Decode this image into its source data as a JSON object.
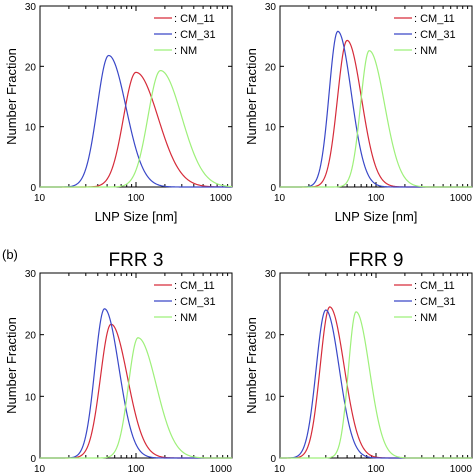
{
  "figure": {
    "section_label": "(b)"
  },
  "chart_data": [
    {
      "type": "line",
      "title": "",
      "xlabel": "LNP Size [nm]",
      "ylabel": "Number Fraction",
      "xscale": "log",
      "xlim": [
        10,
        1000
      ],
      "ylim": [
        0,
        30
      ],
      "xticks": [
        "10",
        "100",
        "1000"
      ],
      "yticks": [
        "0",
        "10",
        "20",
        "30"
      ],
      "grid": false,
      "legend_position": "top-right",
      "colors": {
        "CM_11": "#d62c3a",
        "CM_31": "#3a48c8",
        "NM": "#9ef07a"
      },
      "series": [
        {
          "name": ": CM_11",
          "peak_x": 100,
          "peak_y": 19.0,
          "sigma_left": 0.13,
          "sigma_right": 0.23
        },
        {
          "name": ": CM_31",
          "peak_x": 52,
          "peak_y": 21.8,
          "sigma_left": 0.12,
          "sigma_right": 0.18
        },
        {
          "name": ": NM",
          "peak_x": 180,
          "peak_y": 19.3,
          "sigma_left": 0.13,
          "sigma_right": 0.22
        }
      ]
    },
    {
      "type": "line",
      "title": "",
      "xlabel": "LNP Size [nm]",
      "ylabel": "Number Fraction",
      "xscale": "log",
      "xlim": [
        10,
        1000
      ],
      "ylim": [
        0,
        30
      ],
      "xticks": [
        "10",
        "100",
        "1000"
      ],
      "yticks": [
        "0",
        "10",
        "20",
        "30"
      ],
      "grid": false,
      "legend_position": "top-right",
      "colors": {
        "CM_11": "#d62c3a",
        "CM_31": "#3a48c8",
        "NM": "#9ef07a"
      },
      "series": [
        {
          "name": ": CM_11",
          "peak_x": 50,
          "peak_y": 24.3,
          "sigma_left": 0.1,
          "sigma_right": 0.15
        },
        {
          "name": ": CM_31",
          "peak_x": 40,
          "peak_y": 25.8,
          "sigma_left": 0.09,
          "sigma_right": 0.14
        },
        {
          "name": ": NM",
          "peak_x": 85,
          "peak_y": 22.6,
          "sigma_left": 0.09,
          "sigma_right": 0.16
        }
      ]
    },
    {
      "type": "line",
      "title": "FRR 3",
      "xlabel": "",
      "ylabel": "Number Fraction",
      "xscale": "log",
      "xlim": [
        10,
        1000
      ],
      "ylim": [
        0,
        30
      ],
      "xticks": [
        "10",
        "100",
        "1000"
      ],
      "yticks": [
        "0",
        "10",
        "20",
        "30"
      ],
      "grid": false,
      "legend_position": "top-right",
      "colors": {
        "CM_11": "#d62c3a",
        "CM_31": "#3a48c8",
        "NM": "#9ef07a"
      },
      "series": [
        {
          "name": ": CM_11",
          "peak_x": 55,
          "peak_y": 21.7,
          "sigma_left": 0.11,
          "sigma_right": 0.17
        },
        {
          "name": ": CM_31",
          "peak_x": 47,
          "peak_y": 24.2,
          "sigma_left": 0.1,
          "sigma_right": 0.15
        },
        {
          "name": ": NM",
          "peak_x": 105,
          "peak_y": 19.5,
          "sigma_left": 0.1,
          "sigma_right": 0.19
        }
      ]
    },
    {
      "type": "line",
      "title": "FRR 9",
      "xlabel": "",
      "ylabel": "Number Fraction",
      "xscale": "log",
      "xlim": [
        10,
        1000
      ],
      "ylim": [
        0,
        30
      ],
      "xticks": [
        "10",
        "100",
        "1000"
      ],
      "yticks": [
        "0",
        "10",
        "20",
        "30"
      ],
      "grid": false,
      "legend_position": "top-right",
      "colors": {
        "CM_11": "#d62c3a",
        "CM_31": "#3a48c8",
        "NM": "#9ef07a"
      },
      "series": [
        {
          "name": ": CM_11",
          "peak_x": 33,
          "peak_y": 24.5,
          "sigma_left": 0.1,
          "sigma_right": 0.15
        },
        {
          "name": ": CM_31",
          "peak_x": 30,
          "peak_y": 24.0,
          "sigma_left": 0.1,
          "sigma_right": 0.14
        },
        {
          "name": ": NM",
          "peak_x": 62,
          "peak_y": 23.7,
          "sigma_left": 0.08,
          "sigma_right": 0.14
        }
      ]
    }
  ]
}
